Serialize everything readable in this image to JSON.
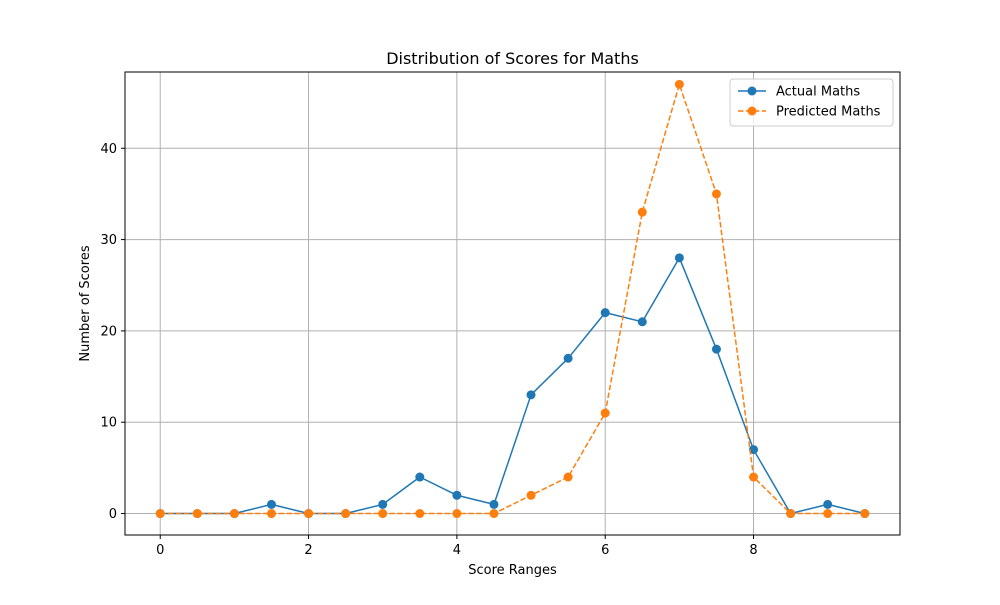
{
  "chart_data": {
    "type": "line",
    "title": "Distribution of Scores for Maths",
    "xlabel": "Score Ranges",
    "ylabel": "Number of Scores",
    "xlim": [
      -0.475,
      9.975
    ],
    "ylim": [
      -2.35,
      48.35
    ],
    "xticks": [
      0,
      2,
      4,
      6,
      8
    ],
    "yticks": [
      0,
      10,
      20,
      30,
      40
    ],
    "grid": true,
    "legend_position": "top-right",
    "x": [
      0,
      0.5,
      1,
      1.5,
      2,
      2.5,
      3,
      3.5,
      4,
      4.5,
      5,
      5.5,
      6,
      6.5,
      7,
      7.5,
      8,
      8.5,
      9,
      9.5
    ],
    "series": [
      {
        "name": "Actual Maths",
        "color": "#1f77b4",
        "line_style": "solid",
        "marker": "circle",
        "values": [
          0,
          0,
          0,
          1,
          0,
          0,
          1,
          4,
          2,
          1,
          13,
          17,
          22,
          21,
          28,
          18,
          7,
          0,
          1,
          0
        ]
      },
      {
        "name": "Predicted Maths",
        "color": "#ff7f0e",
        "line_style": "dashed",
        "marker": "circle",
        "values": [
          0,
          0,
          0,
          0,
          0,
          0,
          0,
          0,
          0,
          0,
          2,
          4,
          11,
          33,
          47,
          35,
          4,
          0,
          0,
          0
        ]
      }
    ]
  }
}
